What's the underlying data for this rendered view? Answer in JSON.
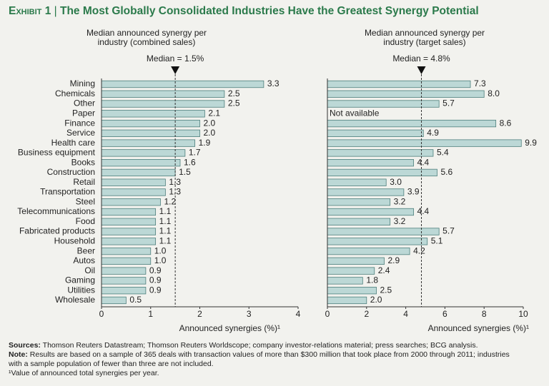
{
  "exhibit": "Exhibit 1",
  "title": "The Most Globally Consolidated Industries Have the Greatest Synergy Potential",
  "chart_data": [
    {
      "type": "bar",
      "orientation": "horizontal",
      "title": "Median announced synergy per industry (combined sales)",
      "categories": [
        "Mining",
        "Chemicals",
        "Other",
        "Paper",
        "Finance",
        "Service",
        "Health care",
        "Business equipment",
        "Books",
        "Construction",
        "Retail",
        "Transportation",
        "Steel",
        "Telecommunications",
        "Food",
        "Fabricated products",
        "Household",
        "Beer",
        "Autos",
        "Oil",
        "Gaming",
        "Utilities",
        "Wholesale"
      ],
      "values": [
        3.3,
        2.5,
        2.5,
        2.1,
        2.0,
        2.0,
        1.9,
        1.7,
        1.6,
        1.5,
        1.3,
        1.3,
        1.2,
        1.1,
        1.1,
        1.1,
        1.1,
        1.0,
        1.0,
        0.9,
        0.9,
        0.9,
        0.5
      ],
      "value_labels": [
        "3.3",
        "2.5",
        "2.5",
        "2.1",
        "2.0",
        "2.0",
        "1.9",
        "1.7",
        "1.6",
        "1.5",
        "1.3",
        "1.3",
        "1.2",
        "1.1",
        "1.1",
        "1.1",
        "1.1",
        "1.0",
        "1.0",
        "0.9",
        "0.9",
        "0.9",
        "0.5"
      ],
      "color": "#bcd8d6",
      "xlim": [
        0,
        4
      ],
      "xticks": [
        0,
        1,
        2,
        3,
        4
      ],
      "xlabel": "Announced synergies (%)¹",
      "median": {
        "value": 1.5,
        "label": "Median = 1.5%"
      }
    },
    {
      "type": "bar",
      "orientation": "horizontal",
      "title": "Median announced synergy per industry (target sales)",
      "values": [
        7.3,
        8.0,
        5.7,
        null,
        8.6,
        4.9,
        9.9,
        5.4,
        4.4,
        5.6,
        3.0,
        3.9,
        3.2,
        4.4,
        3.2,
        5.7,
        5.1,
        4.2,
        2.9,
        2.4,
        1.8,
        2.5,
        2.0
      ],
      "value_labels": [
        "7.3",
        "8.0",
        "5.7",
        null,
        "8.6",
        "4.9",
        "9.9",
        "5.4",
        "4.4",
        "5.6",
        "3.0",
        "3.9",
        "3.2",
        "4.4",
        "3.2",
        "5.7",
        "5.1",
        "4.2",
        "2.9",
        "2.4",
        "1.8",
        "2.5",
        "2.0"
      ],
      "annotations": [
        {
          "text": "Not available"
        }
      ],
      "color": "#bcd8d6",
      "xlim": [
        0,
        10
      ],
      "xticks": [
        0,
        2,
        4,
        6,
        8,
        10
      ],
      "xlabel": "Announced synergies (%)¹",
      "median": {
        "value": 4.8,
        "label": "Median = 4.8%"
      }
    }
  ],
  "notes": {
    "sources": {
      "label": "Sources:",
      "text": "Thomson Reuters Datastream; Thomson Reuters Worldscope; company investor-relations material; press searches; BCG analysis."
    },
    "note": {
      "label": "Note:",
      "text": "Results are based on a sample of 365 deals with transaction values of more than $300 million that took place from 2000 through 2011; industries with a sample population of fewer than three are not included."
    },
    "footnote": "¹Value of announced total synergies per year."
  }
}
